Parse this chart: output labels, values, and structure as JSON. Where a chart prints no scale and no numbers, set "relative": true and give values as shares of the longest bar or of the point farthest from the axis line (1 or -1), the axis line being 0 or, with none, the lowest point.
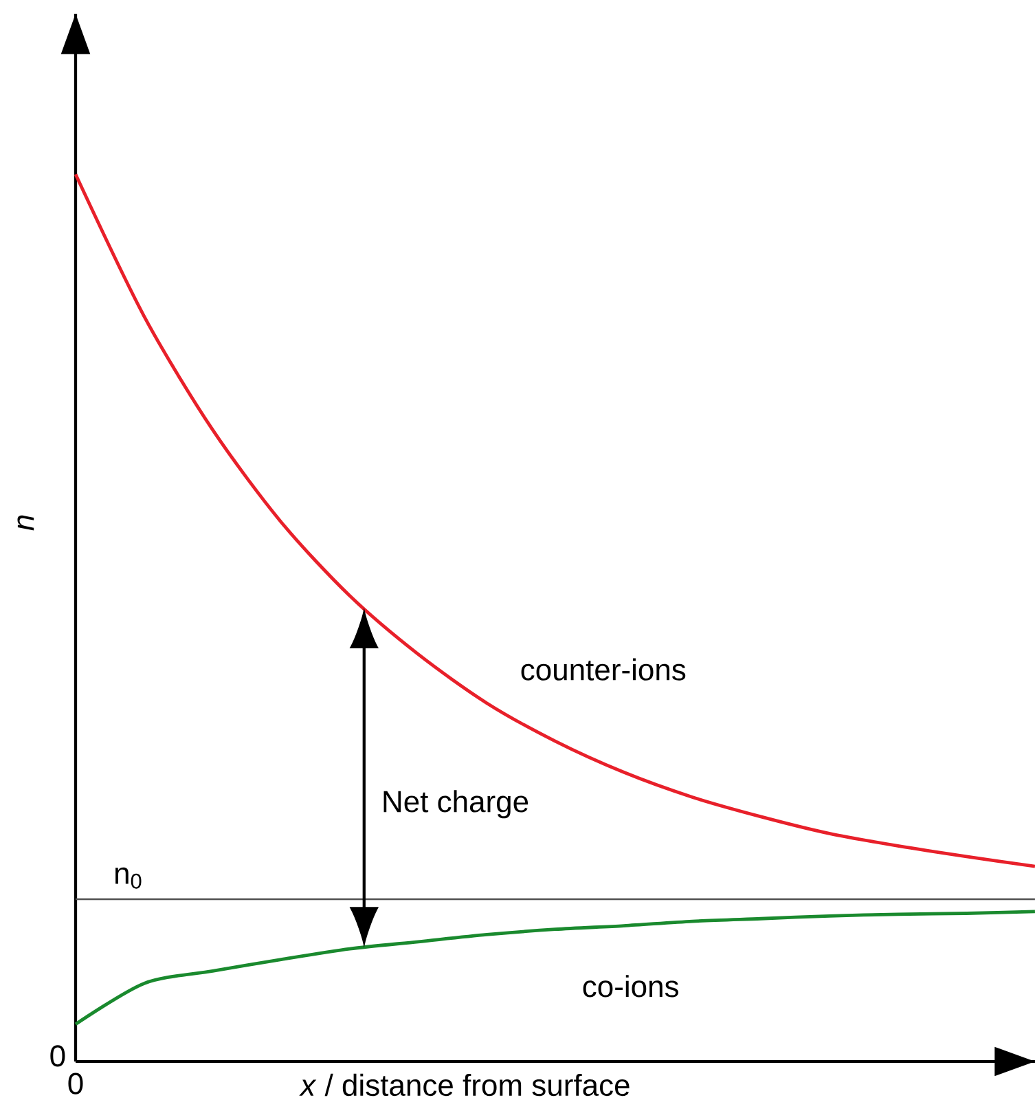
{
  "chart_data": {
    "type": "line",
    "relative": true,
    "xlabel": "*x* / distance from surface",
    "ylabel": "n",
    "categories": [
      null,
      null,
      null,
      null,
      null,
      null,
      null,
      null,
      null,
      null,
      null,
      null,
      null,
      null,
      null
    ],
    "series": [
      {
        "name": "counter-ions",
        "color": "#e8202a",
        "values": [
          1.0,
          0.84,
          0.712,
          0.608,
          0.525,
          0.459,
          0.404,
          0.361,
          0.326,
          0.298,
          0.276,
          0.257,
          0.243,
          0.231,
          0.22
        ]
      },
      {
        "name": "co-ions",
        "color": "#1a8a2e",
        "values": [
          0.042,
          0.088,
          0.102,
          0.115,
          0.127,
          0.135,
          0.143,
          0.149,
          0.153,
          0.158,
          0.161,
          0.164,
          0.166,
          0.167,
          0.169
        ]
      }
    ],
    "ref_lines": [
      {
        "axis": "y",
        "value": 0.183,
        "label": "n$_{0}$",
        "color": "#555555"
      }
    ],
    "annotations": [
      "0",
      "0",
      "Net charge"
    ]
  }
}
